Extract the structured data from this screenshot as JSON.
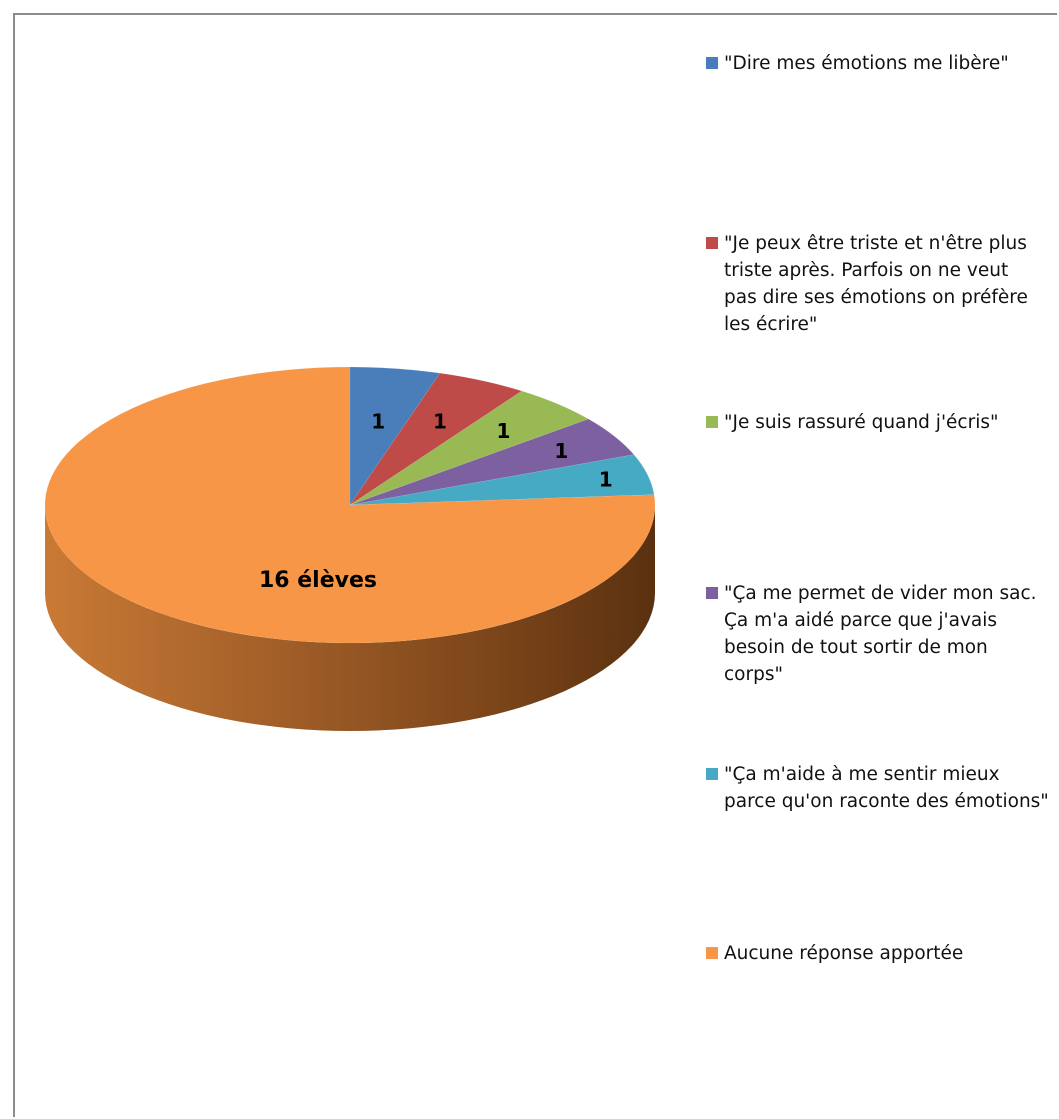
{
  "chart_data": {
    "type": "pie",
    "labels": [
      "\"Dire mes émotions me libère\"",
      "\"Je peux être triste et n'être plus triste après. Parfois on ne veut pas dire ses émotions on préfère les écrire\"",
      "\"Je suis rassuré quand j'écris\"",
      "\"Ça me permet de vider mon sac. Ça m'a aidé parce que j'avais besoin de tout sortir de mon corps\"",
      "\"Ça m'aide à me sentir mieux parce qu'on raconte des émotions\"",
      "Aucune réponse apportée"
    ],
    "values": [
      1,
      1,
      1,
      1,
      1,
      16
    ],
    "data_labels": [
      "1",
      "1",
      "1",
      "1",
      "1",
      "16 élèves"
    ],
    "colors": [
      "#4a7ebb",
      "#be4b48",
      "#98b954",
      "#7d60a0",
      "#46aac5",
      "#f79646"
    ],
    "three_d": true,
    "legend_position": "right"
  }
}
